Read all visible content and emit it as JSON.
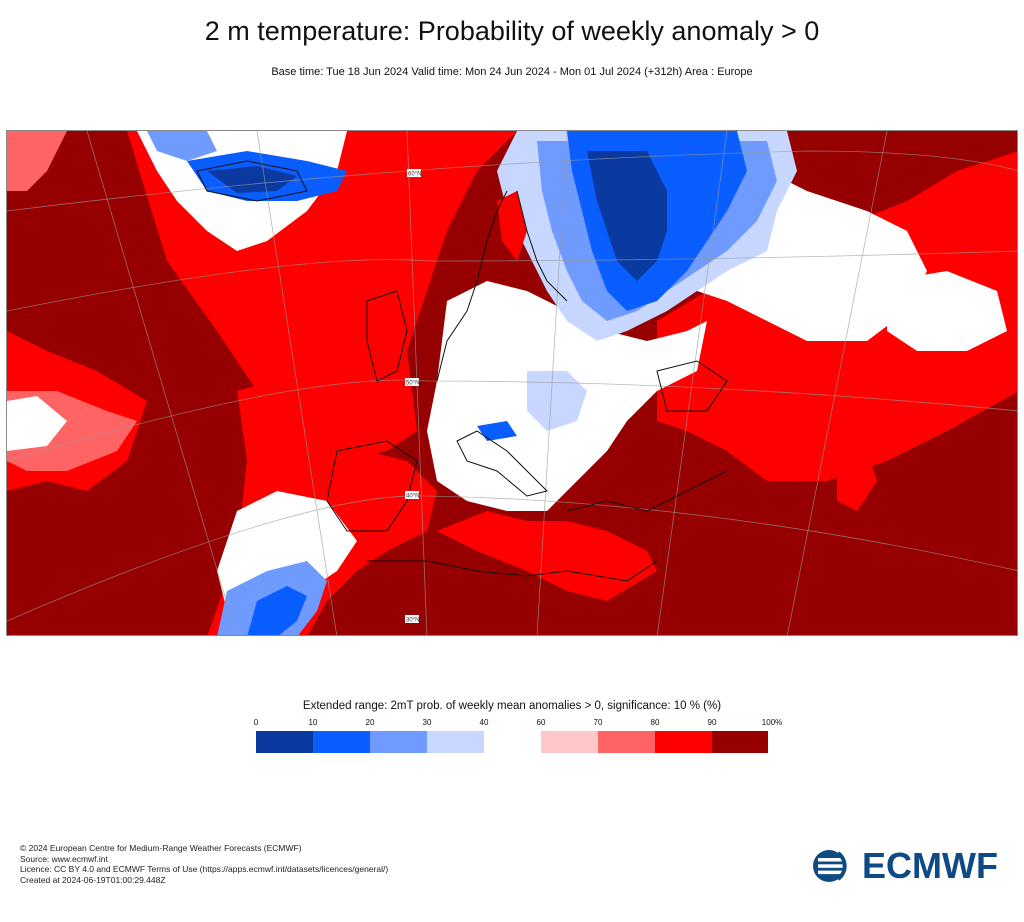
{
  "title": "2 m temperature: Probability of weekly anomaly > 0",
  "subtitle": "Base time: Tue 18 Jun 2024 Valid time: Mon 24 Jun 2024 - Mon 01 Jul 2024 (+312h) Area : Europe",
  "map": {
    "region": "Europe",
    "lat_labels": [
      "60°N",
      "50°N",
      "40°N",
      "30°N"
    ]
  },
  "legend": {
    "title": "Extended range: 2mT prob. of weekly mean anomalies > 0, significance: 10 % (%)",
    "ticks": [
      "0",
      "10",
      "20",
      "30",
      "40",
      "60",
      "70",
      "80",
      "90",
      "100%"
    ],
    "bins": [
      {
        "range": "0-10",
        "color": "#0a3aa0"
      },
      {
        "range": "10-20",
        "color": "#0a5dff"
      },
      {
        "range": "20-30",
        "color": "#6f9bff"
      },
      {
        "range": "30-40",
        "color": "#c7d7ff"
      },
      {
        "range": "60-70",
        "color": "#ffc8c8"
      },
      {
        "range": "70-80",
        "color": "#ff6464"
      },
      {
        "range": "80-90",
        "color": "#ff0000"
      },
      {
        "range": "90-100",
        "color": "#960000"
      }
    ]
  },
  "footer": {
    "line1": "© 2024 European Centre for Medium-Range Weather Forecasts (ECMWF)",
    "line2": "Source: www.ecmwf.int",
    "line3": "Licence: CC BY 4.0 and ECMWF Terms of Use (https://apps.ecmwf.int/datasets/licences/general/)",
    "line4": "Created at 2024-06-19T01:00:29.448Z"
  },
  "logo": {
    "text": "ECMWF",
    "color": "#0e4a84"
  }
}
